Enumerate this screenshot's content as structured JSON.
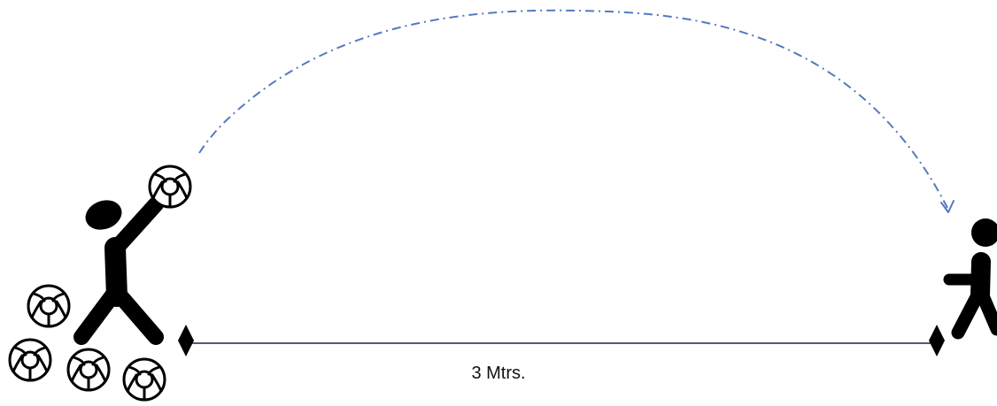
{
  "diagram": {
    "distance_label": "3 Mtrs.",
    "colors": {
      "figure": "#000000",
      "ground_line": "#1c2740",
      "throw_path": "#5479c0",
      "ball_outline": "#000000",
      "ball_fill": "#ffffff"
    },
    "icons": {
      "thrower": "person-throwing-icon",
      "catcher": "person-catching-icon",
      "balls": "ball-icon",
      "markers": "diamond-marker-icon",
      "path": "dash-dot-arc-arrow-icon"
    }
  }
}
